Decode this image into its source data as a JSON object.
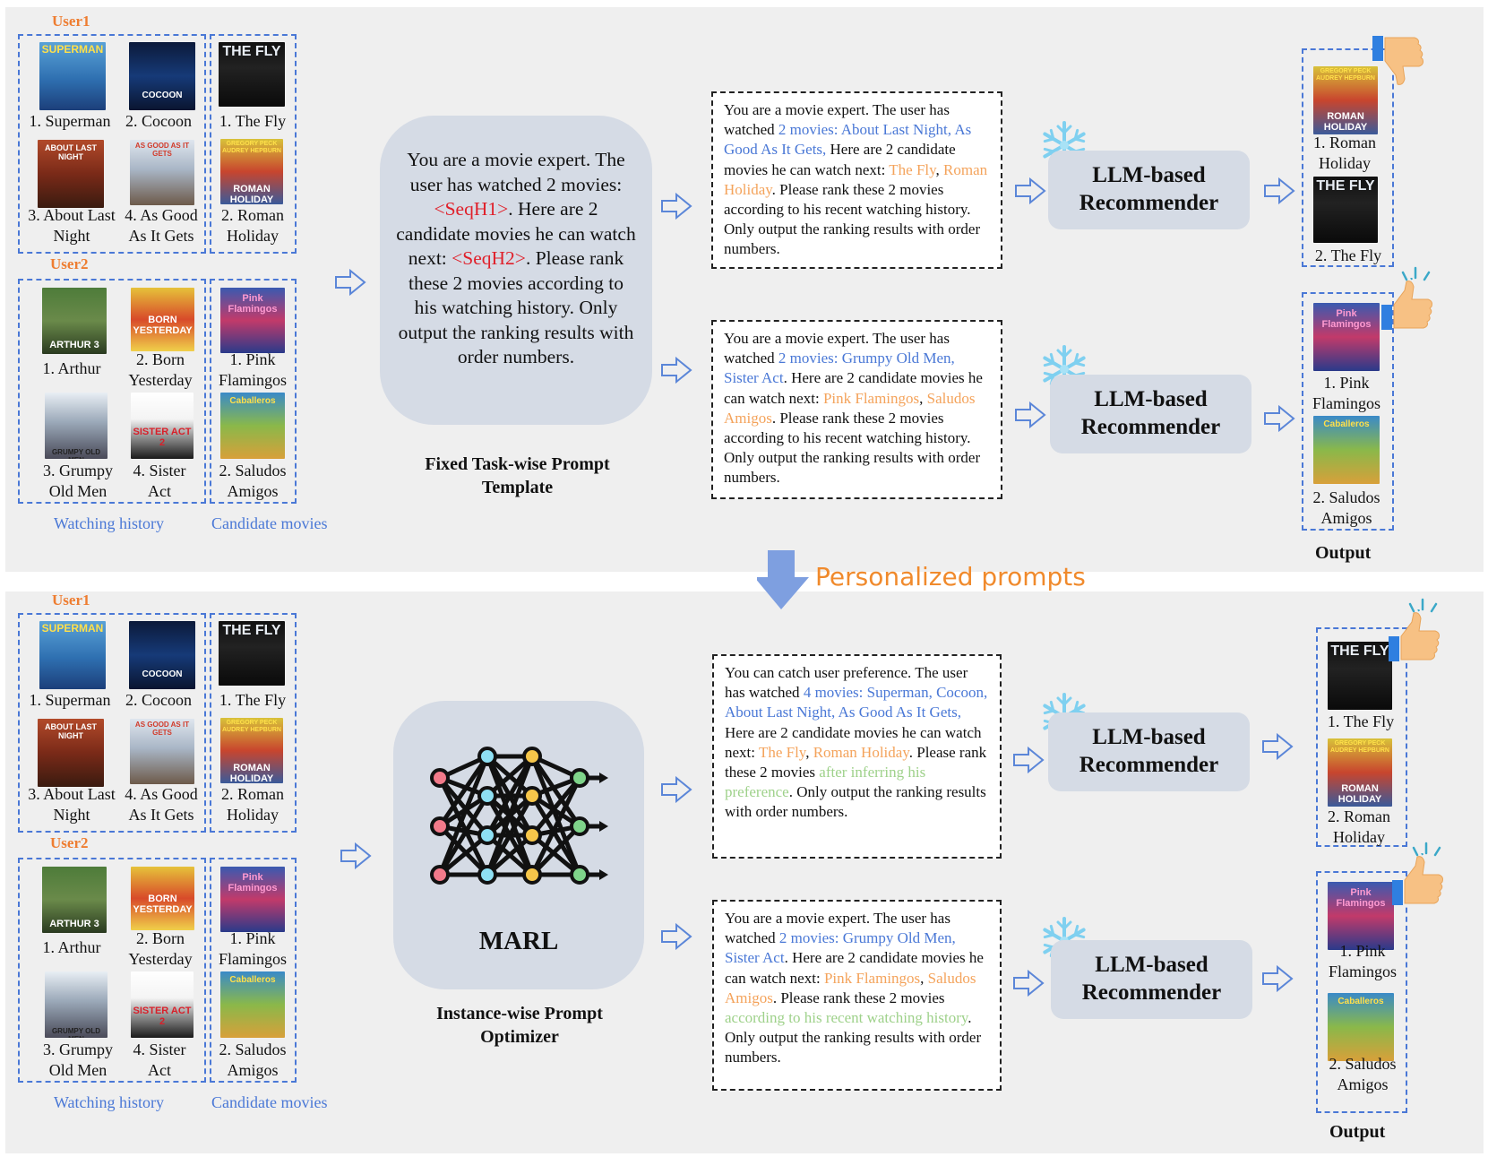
{
  "top": {
    "user1_label": "User1",
    "user2_label": "User2",
    "user1_history": [
      "1. Superman",
      "2. Cocoon",
      "3. About Last Night",
      "4. As Good As It Gets"
    ],
    "user1_candidates": [
      "1. The Fly",
      "2. Roman Holiday"
    ],
    "user2_history": [
      "1. Arthur",
      "2. Born Yesterday",
      "3. Grumpy Old Men",
      "4. Sister Act"
    ],
    "user2_candidates": [
      "1. Pink Flamingos",
      "2. Saludos Amigos"
    ],
    "watching_history_label": "Watching history",
    "candidate_movies_label": "Candidate movies",
    "template_text_parts": [
      "You are a movie expert. The user has watched 2 movies: ",
      "<SeqH1>",
      ". Here are 2 candidate movies he can watch next: ",
      "<SeqH2>",
      ". Please rank these 2 movies according to his watching history. Only output the ranking results with order numbers."
    ],
    "template_caption": "Fixed Task-wise Prompt Template",
    "prompt1_parts": [
      "You are a movie expert. The user has watched ",
      "2 movies: About Last Night, As Good As It Gets,",
      " Here are 2 candidate movies he can watch next: ",
      "The Fly",
      ", ",
      "Roman Holiday",
      ". Please rank these 2 movies according to his recent watching history. Only output the ranking results with order numbers."
    ],
    "prompt2_parts": [
      "You are a movie expert. The user has watched ",
      "2 movies:  Grumpy Old Men, Sister Act",
      ". Here are 2 candidate movies he can watch next: ",
      "Pink Flamingos",
      ", ",
      "Saludos Amigos",
      ". Please rank these 2 movies according to his recent watching history. Only output the ranking results with order numbers."
    ],
    "recommender_label": "LLM-based Recommender",
    "output1": [
      "1. Roman Holiday",
      "2. The Fly"
    ],
    "output2": [
      "1. Pink Flamingos",
      "2. Saludos Amigos"
    ],
    "output_label": "Output"
  },
  "transition_label": "Personalized prompts",
  "bottom": {
    "user1_label": "User1",
    "user2_label": "User2",
    "user1_history": [
      "1. Superman",
      "2. Cocoon",
      "3. About Last Night",
      "4. As Good As It Gets"
    ],
    "user1_candidates": [
      "1. The Fly",
      "2. Roman Holiday"
    ],
    "user2_history": [
      "1. Arthur",
      "2. Born Yesterday",
      "3. Grumpy Old Men",
      "4. Sister Act"
    ],
    "user2_candidates": [
      "1. Pink Flamingos",
      "2. Saludos Amigos"
    ],
    "watching_history_label": "Watching history",
    "candidate_movies_label": "Candidate movies",
    "optimizer_name": "MARL",
    "optimizer_caption": "Instance-wise Prompt Optimizer",
    "prompt1_parts": [
      "You can catch user preference. The user has watched ",
      "4 movies: Superman, Cocoon, About Last Night, As Good As It Gets,",
      " Here are 2 candidate movies he can watch next: ",
      "The Fly",
      ", ",
      "Roman Holiday",
      ". Please rank these 2 movies ",
      "after inferring his preference",
      ". Only output the ranking results with order numbers."
    ],
    "prompt2_parts": [
      "You are a movie expert. The user has watched ",
      "2 movies:  Grumpy Old Men, Sister Act",
      ". Here are 2 candidate movies he can watch next: ",
      "Pink Flamingos",
      ", ",
      "Saludos Amigos",
      ". Please rank these 2 movies ",
      "according to his recent watching history",
      ". Only output the ranking results with order numbers."
    ],
    "recommender_label": "LLM-based Recommender",
    "output1": [
      "1. The Fly",
      "2. Roman Holiday"
    ],
    "output2": [
      "1. Pink Flamingos",
      "2. Saludos Amigos"
    ],
    "output_label": "Output"
  },
  "posters": {
    "superman": "SUPERMAN",
    "cocoon": "COCOON",
    "the_fly": "THE FLY",
    "about_last_night": "ABOUT LAST NIGHT",
    "as_good_as_it_gets": "AS GOOD AS IT GETS",
    "roman_holiday": "ROMAN HOLIDAY",
    "roman_holiday_credits": "GREGORY PECK AUDREY HEPBURN",
    "arthur": "ARTHUR 3",
    "born_yesterday": "BORN YESTERDAY",
    "pink_flamingos": "Pink Flamingos",
    "grumpy_old_men": "GRUMPY OLD MEN",
    "sister_act": "SISTER ACT 2",
    "saludos_amigos": "Caballeros"
  },
  "colors": {
    "panel_bg": "#efefef",
    "dashed_blue": "#4a78d6",
    "user_orange": "#ee7d31",
    "highlight_blue": "#4a78d6",
    "highlight_orange": "#f4a35b",
    "highlight_green": "#9ed18a",
    "placeholder_red": "#e0202a",
    "box_fill": "#d5dbe5",
    "arrow_blue": "#7e9fe0"
  },
  "icons": [
    "snowflake-icon",
    "thumbs-down-icon",
    "thumbs-up-icon",
    "neural-network-icon",
    "hollow-arrow-icon",
    "down-arrow-icon"
  ]
}
